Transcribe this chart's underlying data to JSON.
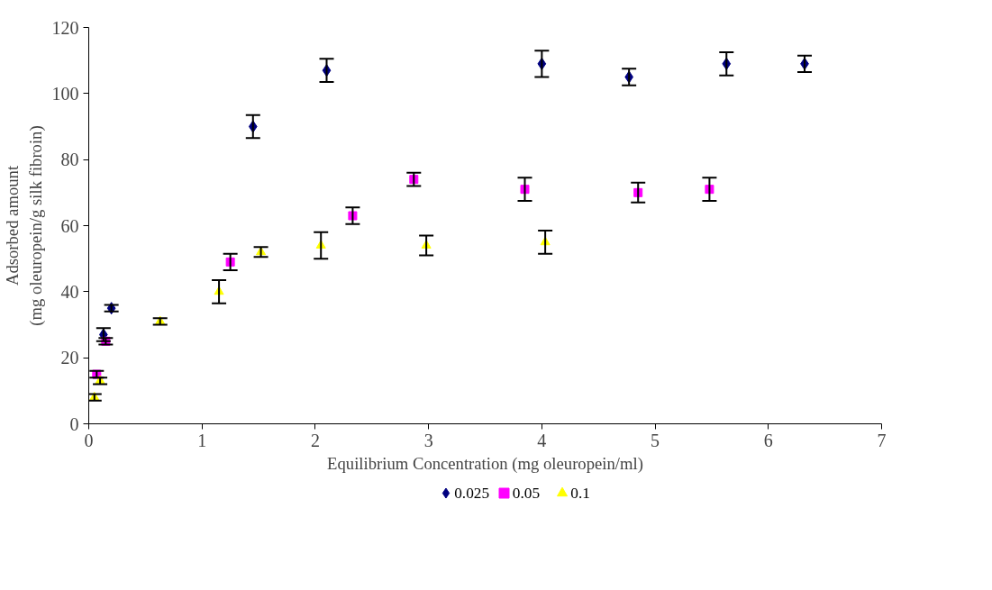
{
  "chart_data": {
    "type": "scatter",
    "xlabel": "Equilibrium Concentration (mg oleuropein/ml)",
    "ylabel": "Adsorbed amount\n(mg oleuropein/g silk fibroin)",
    "xlim": [
      0,
      7
    ],
    "xticks": [
      0,
      1,
      2,
      3,
      4,
      5,
      6,
      7
    ],
    "ylim": [
      0,
      120
    ],
    "yticks": [
      0,
      20,
      40,
      60,
      80,
      100,
      120
    ],
    "grid": false,
    "legend": "bottom",
    "series": [
      {
        "name": "0.025",
        "color": "#000080",
        "marker": "diamond",
        "x": [
          0.13,
          0.2,
          1.45,
          2.1,
          4.0,
          4.77,
          5.63,
          6.32
        ],
        "values": [
          27,
          35,
          90,
          107,
          109,
          105,
          109,
          109
        ],
        "errors": [
          2,
          1,
          3.5,
          3.5,
          4,
          2.5,
          3.5,
          2.5
        ]
      },
      {
        "name": "0.05",
        "color": "#ff00ff",
        "marker": "square",
        "x": [
          0.07,
          0.15,
          1.25,
          2.33,
          2.87,
          3.85,
          4.85,
          5.48
        ],
        "values": [
          15,
          25,
          49,
          63,
          74,
          71,
          70,
          71
        ],
        "errors": [
          1,
          1,
          2.5,
          2.5,
          2,
          3.5,
          3,
          3.5
        ]
      },
      {
        "name": "0.1",
        "color": "#ffff00",
        "marker": "triangle",
        "x": [
          0.05,
          0.1,
          0.63,
          1.15,
          1.52,
          2.05,
          2.98,
          4.03
        ],
        "values": [
          8,
          13,
          31,
          40,
          52,
          54,
          54,
          55
        ],
        "errors": [
          1,
          1,
          1,
          3.5,
          1.5,
          4,
          3,
          3.5
        ]
      }
    ]
  }
}
